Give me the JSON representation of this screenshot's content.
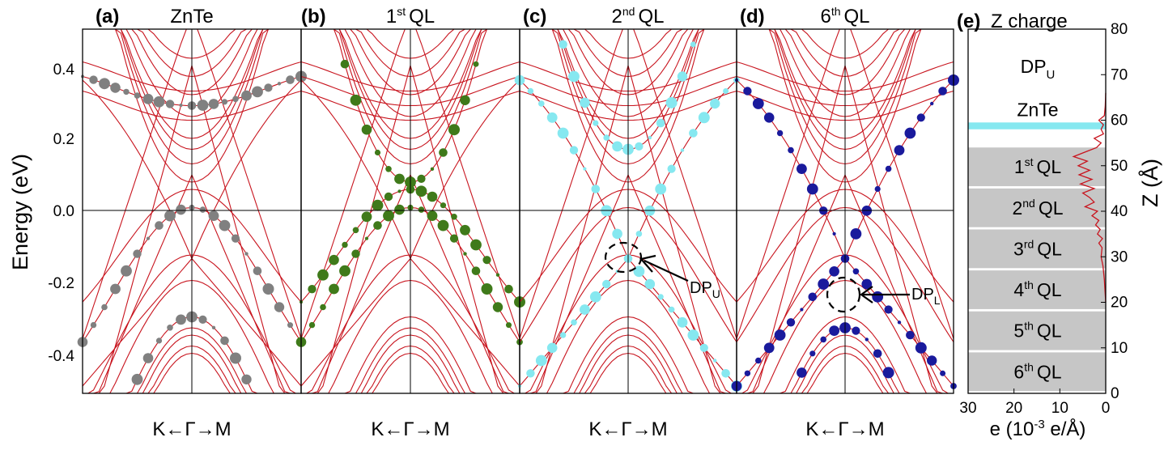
{
  "figure": {
    "y_axis_title": "Energy (eV)",
    "x_path_label": "K←Γ→M",
    "line_color": "#c8141e",
    "fermi_line_color": "#000000"
  },
  "chart_data": [
    {
      "panel": "(a)",
      "type": "line",
      "title": "ZnTe",
      "title_sup": "",
      "ylim": [
        -0.5,
        0.5
      ],
      "yticks": [
        -0.4,
        -0.2,
        0.0,
        0.2,
        0.4
      ],
      "ytick_labels": [
        "-0.4",
        "-0.2",
        "0.0",
        "0.2",
        "0.4"
      ],
      "xlabel": "K←Γ→M",
      "weight_color": "#808080",
      "weights_on": "ZnTe-derived states"
    },
    {
      "panel": "(b)",
      "type": "line",
      "title": "QL",
      "title_sup": "st",
      "title_num": "1",
      "ylim": [
        -0.5,
        0.5
      ],
      "xlabel": "K←Γ→M",
      "weight_color": "#3f7a1a"
    },
    {
      "panel": "(c)",
      "type": "line",
      "title": "QL",
      "title_sup": "nd",
      "title_num": "2",
      "ylim": [
        -0.5,
        0.5
      ],
      "xlabel": "K←Γ→M",
      "weight_color": "#86e8f0",
      "annotation": {
        "text": "DP",
        "sub": "U",
        "energy": -0.13
      }
    },
    {
      "panel": "(d)",
      "type": "line",
      "title": "QL",
      "title_sup": "th",
      "title_num": "6",
      "ylim": [
        -0.5,
        0.5
      ],
      "xlabel": "K←Γ→M",
      "weight_color": "#1a1a9c",
      "annotation": {
        "text": "DP",
        "sub": "L",
        "energy": -0.23
      }
    },
    {
      "panel": "(e)",
      "type": "line",
      "title": "Z charge",
      "xlabel": "e (10",
      "xlabel_sup": "-3",
      "xlabel_rest": " e/Å)",
      "ylabel": "Z (Å)",
      "xlim": [
        30,
        0
      ],
      "xticks": [
        30,
        20,
        10,
        0
      ],
      "xtick_labels": [
        "30",
        "20",
        "10",
        "0"
      ],
      "ylim": [
        0,
        80
      ],
      "yticks": [
        0,
        10,
        20,
        30,
        40,
        50,
        60,
        70,
        80
      ],
      "ytick_labels": [
        "0",
        "10",
        "20",
        "30",
        "40",
        "50",
        "60",
        "70",
        "80"
      ],
      "top_label": {
        "text": "DP",
        "sub": "U"
      },
      "layers": [
        {
          "num": "",
          "sup": "",
          "name": "ZnTe",
          "z0": 58.0,
          "z1": 59.5,
          "color": "#86e8f0"
        },
        {
          "num": "1",
          "sup": "st",
          "name": "QL",
          "z0": 45.5,
          "z1": 54.0,
          "color": "#c6c6c6"
        },
        {
          "num": "2",
          "sup": "nd",
          "name": "QL",
          "z0": 36.5,
          "z1": 45.0,
          "color": "#c6c6c6"
        },
        {
          "num": "3",
          "sup": "rd",
          "name": "QL",
          "z0": 27.5,
          "z1": 36.0,
          "color": "#c6c6c6"
        },
        {
          "num": "4",
          "sup": "th",
          "name": "QL",
          "z0": 18.5,
          "z1": 27.0,
          "color": "#c6c6c6"
        },
        {
          "num": "5",
          "sup": "th",
          "name": "QL",
          "z0": 9.5,
          "z1": 18.0,
          "color": "#c6c6c6"
        },
        {
          "num": "6",
          "sup": "th",
          "name": "QL",
          "z0": 0.5,
          "z1": 9.0,
          "color": "#c6c6c6"
        }
      ],
      "charge_profile": {
        "z": [
          20,
          25,
          28,
          30,
          32,
          33,
          34,
          35,
          36,
          37,
          38,
          39,
          40,
          41,
          42,
          43,
          44,
          45,
          46,
          47,
          48,
          49,
          50,
          51,
          52,
          53,
          54,
          55,
          56,
          57,
          58,
          59,
          60,
          61,
          63,
          66
        ],
        "e": [
          0,
          0.3,
          0.6,
          1.0,
          0.8,
          1.5,
          0.7,
          1.8,
          1.2,
          2.2,
          1.5,
          3.0,
          1.8,
          4.5,
          2.5,
          3.5,
          5.0,
          2.5,
          5.5,
          3.0,
          5.8,
          3.5,
          6.0,
          4.0,
          7.0,
          4.5,
          2.0,
          1.0,
          2.5,
          0.5,
          1.0,
          0.5,
          1.5,
          0.3,
          0.1,
          0
        ]
      }
    }
  ]
}
